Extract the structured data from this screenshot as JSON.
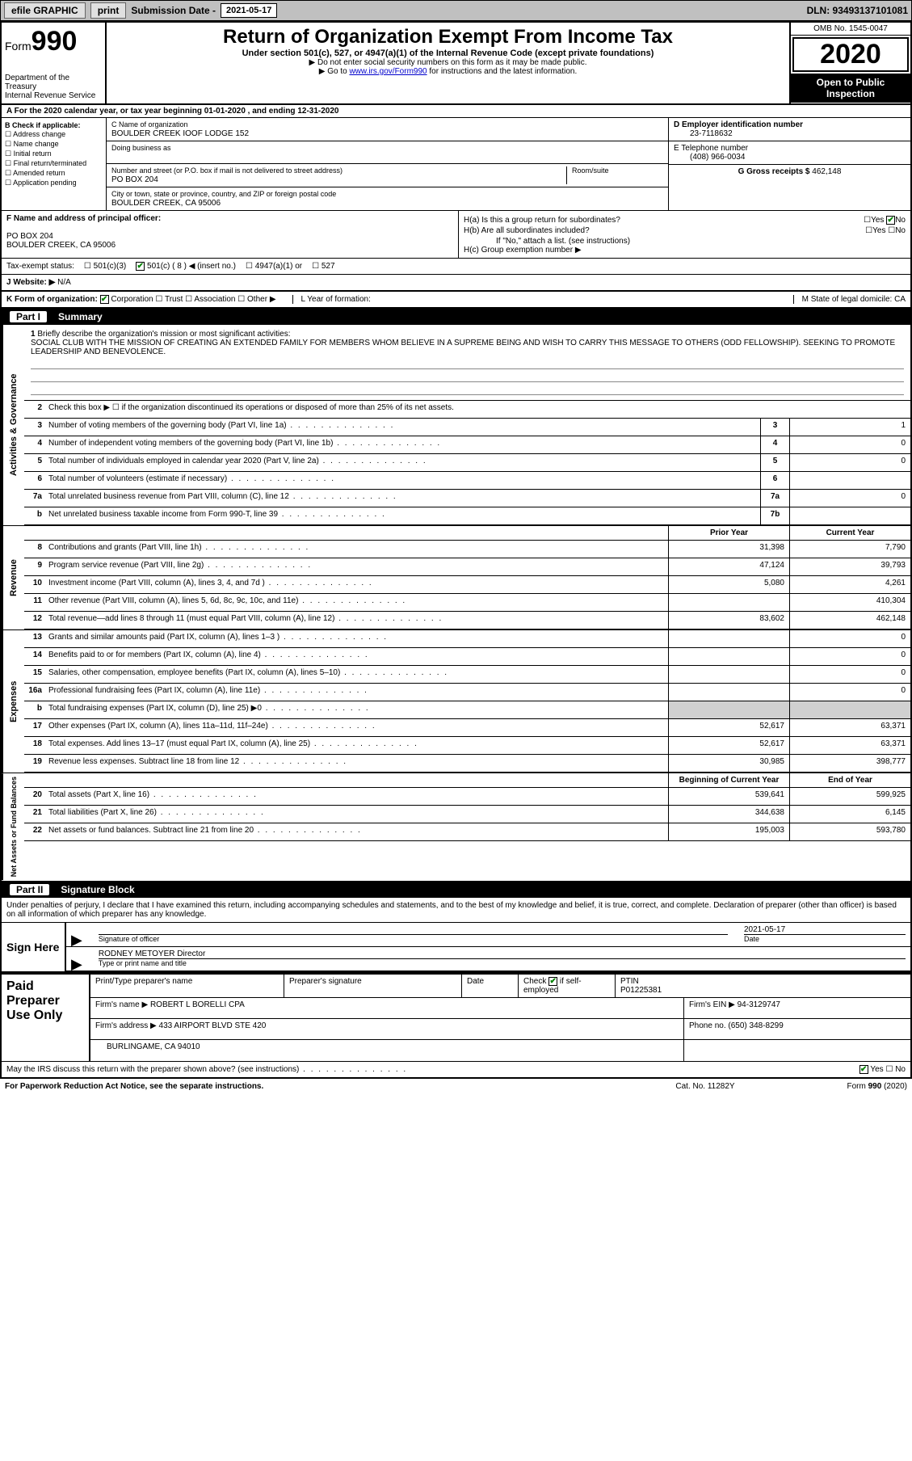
{
  "topbar": {
    "efile": "efile GRAPHIC",
    "print": "print",
    "subdate_label": "Submission Date - ",
    "subdate": "2021-05-17",
    "dln": "DLN: 93493137101081"
  },
  "header": {
    "form_prefix": "Form",
    "form_number": "990",
    "dept": "Department of the Treasury",
    "irs": "Internal Revenue Service",
    "title": "Return of Organization Exempt From Income Tax",
    "sub": "Under section 501(c), 527, or 4947(a)(1) of the Internal Revenue Code (except private foundations)",
    "sub2a": "▶ Do not enter social security numbers on this form as it may be made public.",
    "sub2b_pre": "▶ Go to ",
    "sub2b_link": "www.irs.gov/Form990",
    "sub2b_post": " for instructions and the latest information.",
    "omb": "OMB No. 1545-0047",
    "year": "2020",
    "otp": "Open to Public Inspection"
  },
  "row_a": "A For the 2020 calendar year, or tax year beginning 01-01-2020    , and ending 12-31-2020",
  "col_b": {
    "hdr": "B Check if applicable:",
    "opts": [
      "Address change",
      "Name change",
      "Initial return",
      "Final return/terminated",
      "Amended return",
      "Application pending"
    ]
  },
  "col_c": {
    "name_label": "C Name of organization",
    "name": "BOULDER CREEK IOOF LODGE 152",
    "dba_label": "Doing business as",
    "dba": "",
    "addr_label": "Number and street (or P.O. box if mail is not delivered to street address)",
    "room_label": "Room/suite",
    "addr": "PO BOX 204",
    "city_label": "City or town, state or province, country, and ZIP or foreign postal code",
    "city": "BOULDER CREEK, CA  95006"
  },
  "col_de": {
    "d_label": "D Employer identification number",
    "d_val": "23-7118632",
    "e_label": "E Telephone number",
    "e_val": "(408) 966-0034",
    "g_label": "G Gross receipts $ ",
    "g_val": "462,148"
  },
  "row_f": {
    "label": "F  Name and address of principal officer:",
    "addr1": "PO BOX 204",
    "addr2": "BOULDER CREEK, CA  95006"
  },
  "col_h": {
    "a": "H(a)  Is this a group return for subordinates?",
    "a_yes": "Yes",
    "a_no": "No",
    "b": "H(b)  Are all subordinates included?",
    "b_note": "If \"No,\" attach a list. (see instructions)",
    "c": "H(c)  Group exemption number ▶"
  },
  "tax_status": {
    "label": "Tax-exempt status:",
    "o1": "501(c)(3)",
    "o2": "501(c) ( 8 ) ◀ (insert no.)",
    "o3": "4947(a)(1) or",
    "o4": "527"
  },
  "row_j": {
    "label": "J   Website: ▶",
    "val": "N/A"
  },
  "row_k": {
    "k": "K Form of organization:",
    "opts": [
      "Corporation",
      "Trust",
      "Association",
      "Other ▶"
    ],
    "l": "L Year of formation:",
    "m": "M State of legal domicile: CA"
  },
  "part1": {
    "num": "Part I",
    "title": "Summary"
  },
  "q1": {
    "num": "1",
    "label": "Briefly describe the organization's mission or most significant activities:",
    "text": "SOCIAL CLUB WITH THE MISSION OF CREATING AN EXTENDED FAMILY FOR MEMBERS WHOM BELIEVE IN A SUPREME BEING AND WISH TO CARRY THIS MESSAGE TO OTHERS (ODD FELLOWSHIP). SEEKING TO PROMOTE LEADERSHIP AND BENEVOLENCE."
  },
  "gov_lines": [
    {
      "n": "2",
      "d": "Check this box ▶ ☐ if the organization discontinued its operations or disposed of more than 25% of its net assets."
    },
    {
      "n": "3",
      "d": "Number of voting members of the governing body (Part VI, line 1a)",
      "box": "3",
      "v": "1"
    },
    {
      "n": "4",
      "d": "Number of independent voting members of the governing body (Part VI, line 1b)",
      "box": "4",
      "v": "0"
    },
    {
      "n": "5",
      "d": "Total number of individuals employed in calendar year 2020 (Part V, line 2a)",
      "box": "5",
      "v": "0"
    },
    {
      "n": "6",
      "d": "Total number of volunteers (estimate if necessary)",
      "box": "6",
      "v": ""
    },
    {
      "n": "7a",
      "d": "Total unrelated business revenue from Part VIII, column (C), line 12",
      "box": "7a",
      "v": "0"
    },
    {
      "n": "b",
      "d": "Net unrelated business taxable income from Form 990-T, line 39",
      "box": "7b",
      "v": ""
    }
  ],
  "col_hdrs": {
    "py": "Prior Year",
    "cy": "Current Year"
  },
  "rev_lines": [
    {
      "n": "8",
      "d": "Contributions and grants (Part VIII, line 1h)",
      "py": "31,398",
      "cy": "7,790"
    },
    {
      "n": "9",
      "d": "Program service revenue (Part VIII, line 2g)",
      "py": "47,124",
      "cy": "39,793"
    },
    {
      "n": "10",
      "d": "Investment income (Part VIII, column (A), lines 3, 4, and 7d )",
      "py": "5,080",
      "cy": "4,261"
    },
    {
      "n": "11",
      "d": "Other revenue (Part VIII, column (A), lines 5, 6d, 8c, 9c, 10c, and 11e)",
      "py": "",
      "cy": "410,304"
    },
    {
      "n": "12",
      "d": "Total revenue—add lines 8 through 11 (must equal Part VIII, column (A), line 12)",
      "py": "83,602",
      "cy": "462,148"
    }
  ],
  "exp_lines": [
    {
      "n": "13",
      "d": "Grants and similar amounts paid (Part IX, column (A), lines 1–3 )",
      "py": "",
      "cy": "0"
    },
    {
      "n": "14",
      "d": "Benefits paid to or for members (Part IX, column (A), line 4)",
      "py": "",
      "cy": "0"
    },
    {
      "n": "15",
      "d": "Salaries, other compensation, employee benefits (Part IX, column (A), lines 5–10)",
      "py": "",
      "cy": "0"
    },
    {
      "n": "16a",
      "d": "Professional fundraising fees (Part IX, column (A), line 11e)",
      "py": "",
      "cy": "0"
    },
    {
      "n": "b",
      "d": "Total fundraising expenses (Part IX, column (D), line 25) ▶0",
      "py": "SHADE",
      "cy": "SHADE"
    },
    {
      "n": "17",
      "d": "Other expenses (Part IX, column (A), lines 11a–11d, 11f–24e)",
      "py": "52,617",
      "cy": "63,371"
    },
    {
      "n": "18",
      "d": "Total expenses. Add lines 13–17 (must equal Part IX, column (A), line 25)",
      "py": "52,617",
      "cy": "63,371"
    },
    {
      "n": "19",
      "d": "Revenue less expenses. Subtract line 18 from line 12",
      "py": "30,985",
      "cy": "398,777"
    }
  ],
  "net_hdrs": {
    "b": "Beginning of Current Year",
    "e": "End of Year"
  },
  "net_lines": [
    {
      "n": "20",
      "d": "Total assets (Part X, line 16)",
      "py": "539,641",
      "cy": "599,925"
    },
    {
      "n": "21",
      "d": "Total liabilities (Part X, line 26)",
      "py": "344,638",
      "cy": "6,145"
    },
    {
      "n": "22",
      "d": "Net assets or fund balances. Subtract line 21 from line 20",
      "py": "195,003",
      "cy": "593,780"
    }
  ],
  "side_labels": {
    "gov": "Activities & Governance",
    "rev": "Revenue",
    "exp": "Expenses",
    "net": "Net Assets or Fund Balances"
  },
  "part2": {
    "num": "Part II",
    "title": "Signature Block"
  },
  "sig": {
    "decl": "Under penalties of perjury, I declare that I have examined this return, including accompanying schedules and statements, and to the best of my knowledge and belief, it is true, correct, and complete. Declaration of preparer (other than officer) is based on all information of which preparer has any knowledge.",
    "sign_here": "Sign Here",
    "sig_officer": "Signature of officer",
    "date": "Date",
    "date_val": "2021-05-17",
    "name_title": "RODNEY METOYER  Director",
    "name_title_label": "Type or print name and title"
  },
  "paid": {
    "label": "Paid Preparer Use Only",
    "h1": "Print/Type preparer's name",
    "h2": "Preparer's signature",
    "h3": "Date",
    "h4a": "Check",
    "h4b": "if self-employed",
    "h5": "PTIN",
    "ptin": "P01225381",
    "firm_name_l": "Firm's name    ▶",
    "firm_name": "ROBERT L BORELLI CPA",
    "firm_ein_l": "Firm's EIN ▶",
    "firm_ein": "94-3129747",
    "firm_addr_l": "Firm's address ▶",
    "firm_addr1": "433 AIRPORT BLVD STE 420",
    "firm_addr2": "BURLINGAME, CA  94010",
    "phone_l": "Phone no.",
    "phone": "(650) 348-8299"
  },
  "footer": {
    "discuss": "May the IRS discuss this return with the preparer shown above? (see instructions)",
    "yes": "Yes",
    "no": "No",
    "pra": "For Paperwork Reduction Act Notice, see the separate instructions.",
    "cat": "Cat. No. 11282Y",
    "form": "Form 990 (2020)"
  },
  "colors": {
    "topbar_bg": "#c0c0c0",
    "link": "#0000cc",
    "check": "#008000"
  }
}
